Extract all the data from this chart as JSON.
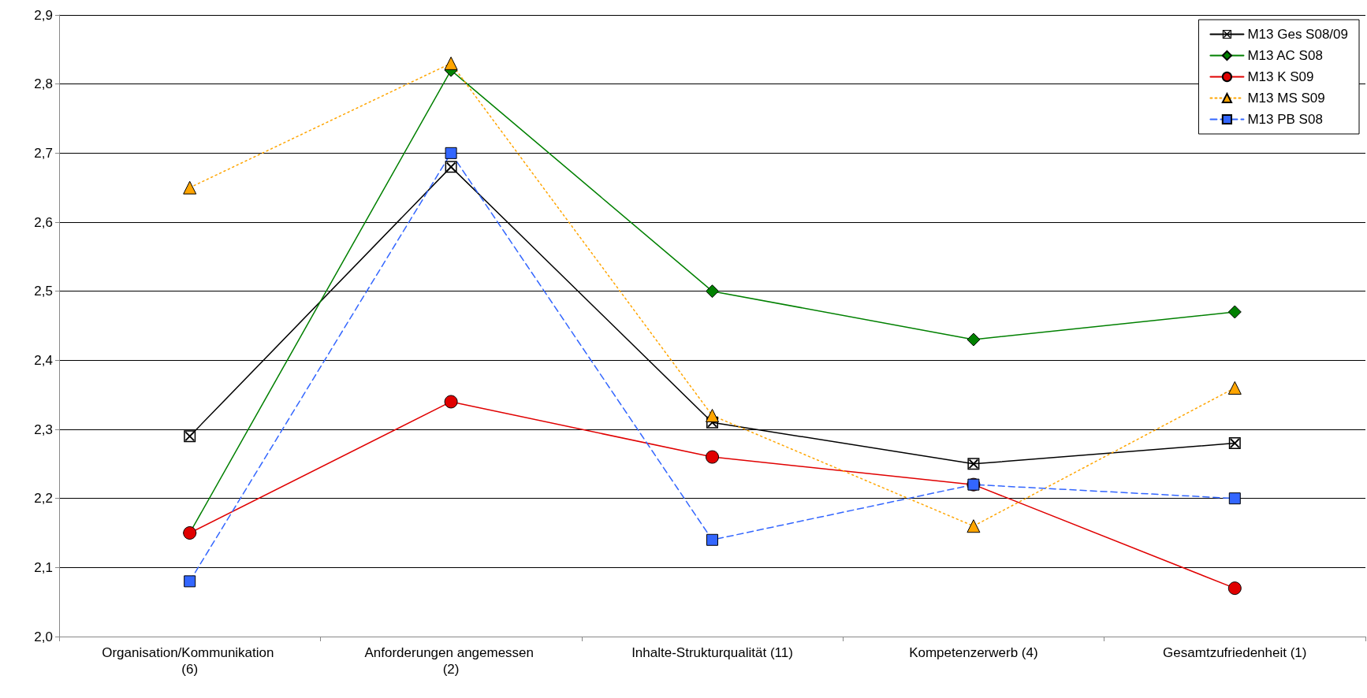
{
  "chart_data": {
    "type": "line",
    "categories": [
      "Organisation/Kommunikation (6)",
      "Anforderungen angemessen (2)",
      "Inhalte-Strukturqualität (11)",
      "Kompetenzerwerb (4)",
      "Gesamtzufriedenheit (1)"
    ],
    "series": [
      {
        "name": "M13 Ges S08/09",
        "color": "#000000",
        "marker": "cross",
        "line_style": "solid",
        "values": [
          2.29,
          2.68,
          2.31,
          2.25,
          2.28
        ]
      },
      {
        "name": "M13 AC S08",
        "color": "#008000",
        "marker": "diamond",
        "line_style": "solid",
        "values": [
          2.15,
          2.82,
          2.5,
          2.43,
          2.47
        ]
      },
      {
        "name": "M13 K S09",
        "color": "#e00000",
        "marker": "circle",
        "line_style": "solid",
        "values": [
          2.15,
          2.34,
          2.26,
          2.22,
          2.07
        ]
      },
      {
        "name": "M13 MS S09",
        "color": "#ffa500",
        "marker": "triangle",
        "line_style": "dotted",
        "values": [
          2.65,
          2.83,
          2.32,
          2.16,
          2.36
        ]
      },
      {
        "name": "M13 PB S08",
        "color": "#3366ff",
        "marker": "square",
        "line_style": "dashed",
        "values": [
          2.08,
          2.7,
          2.14,
          2.22,
          2.2
        ]
      }
    ],
    "ylim": [
      2.0,
      2.9
    ],
    "yticks": [
      {
        "value": 2.0,
        "label": "2,0"
      },
      {
        "value": 2.1,
        "label": "2,1"
      },
      {
        "value": 2.2,
        "label": "2,2"
      },
      {
        "value": 2.3,
        "label": "2,3"
      },
      {
        "value": 2.4,
        "label": "2,4"
      },
      {
        "value": 2.5,
        "label": "2,5"
      },
      {
        "value": 2.6,
        "label": "2,6"
      },
      {
        "value": 2.7,
        "label": "2,7"
      },
      {
        "value": 2.8,
        "label": "2,8"
      },
      {
        "value": 2.9,
        "label": "2,9"
      }
    ],
    "grid": "y",
    "legend": "top right"
  }
}
